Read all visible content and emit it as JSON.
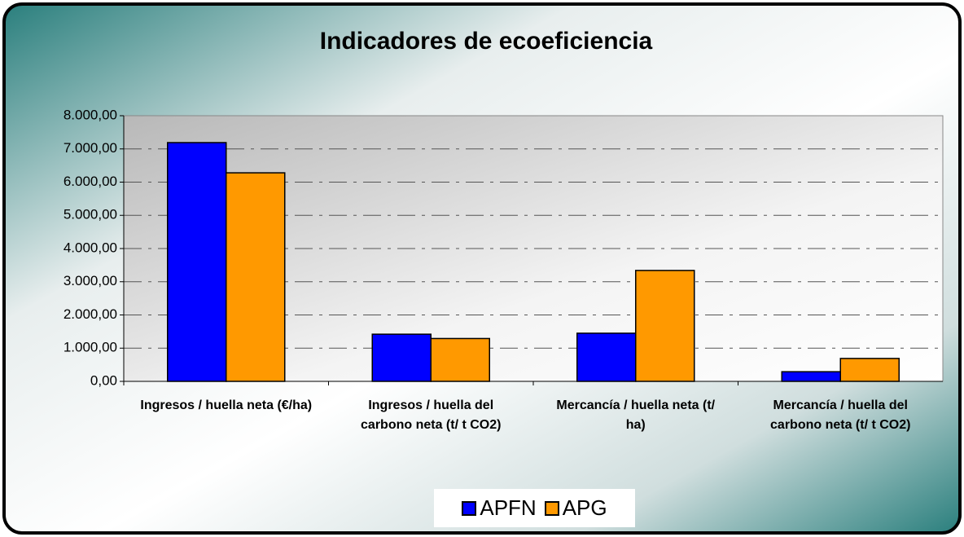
{
  "chart_data": {
    "type": "bar",
    "title": "Indicadores de ecoeficiencia",
    "categories": [
      "Ingresos / huella neta (€/ha)",
      "Ingresos / huella del carbono neta (t/ t CO2)",
      "Mercancía / huella neta (t/ ha)",
      "Mercancía / huella del carbono neta (t/ t CO2)"
    ],
    "series": [
      {
        "name": "APFN",
        "color": "#0000ff",
        "values": [
          7190,
          1420,
          1450,
          290
        ]
      },
      {
        "name": "APG",
        "color": "#ff9900",
        "values": [
          6280,
          1290,
          3340,
          690
        ]
      }
    ],
    "ylim": [
      0,
      8000
    ],
    "yticks": [
      {
        "value": 0,
        "label": "0,00"
      },
      {
        "value": 1000,
        "label": "1.000,00"
      },
      {
        "value": 2000,
        "label": "2.000,00"
      },
      {
        "value": 3000,
        "label": "3.000,00"
      },
      {
        "value": 4000,
        "label": "4.000,00"
      },
      {
        "value": 5000,
        "label": "5.000,00"
      },
      {
        "value": 6000,
        "label": "6.000,00"
      },
      {
        "value": 7000,
        "label": "7.000,00"
      },
      {
        "value": 8000,
        "label": "8.000,00"
      }
    ],
    "grid": true,
    "legend": "bottom"
  }
}
